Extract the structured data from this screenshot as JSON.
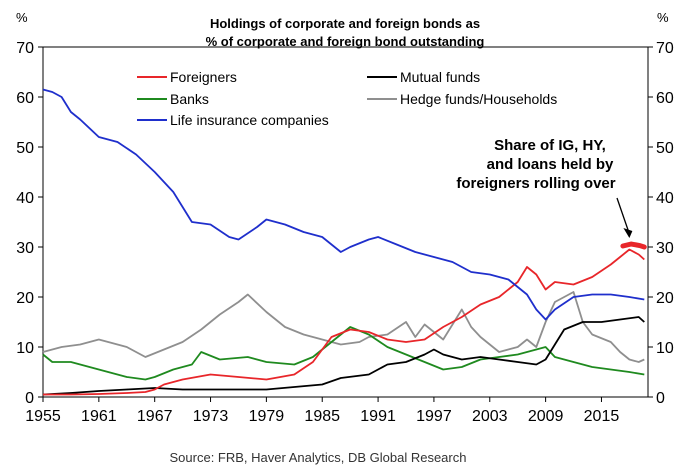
{
  "chart_data": {
    "type": "line",
    "title": "Holdings of corporate and foreign bonds as",
    "subtitle": "% of corporate and foreign bond outstanding",
    "ylabel_left": "%",
    "ylabel_right": "%",
    "xlim": [
      1955,
      2020
    ],
    "ylim": [
      0,
      70
    ],
    "x_ticks": [
      1955,
      1961,
      1967,
      1973,
      1979,
      1985,
      1991,
      1997,
      2003,
      2009,
      2015
    ],
    "y_ticks": [
      0,
      10,
      20,
      30,
      40,
      50,
      60,
      70
    ],
    "source": "Source: FRB, Haver Analytics, DB Global  Research",
    "annotation": {
      "lines": [
        "Share of IG, HY,",
        "and loans held by",
        "foreigners rolling over"
      ],
      "target": [
        2018,
        30.2
      ]
    },
    "series": [
      {
        "name": "Foreigners",
        "color": "#e8262a",
        "points": [
          [
            1955,
            0.5
          ],
          [
            1958,
            0.5
          ],
          [
            1961,
            0.6
          ],
          [
            1964,
            0.8
          ],
          [
            1966,
            1.0
          ],
          [
            1967,
            1.5
          ],
          [
            1968,
            2.5
          ],
          [
            1970,
            3.5
          ],
          [
            1973,
            4.5
          ],
          [
            1976,
            4.0
          ],
          [
            1979,
            3.5
          ],
          [
            1982,
            4.5
          ],
          [
            1984,
            7.0
          ],
          [
            1986,
            12.0
          ],
          [
            1988,
            13.5
          ],
          [
            1990,
            13.0
          ],
          [
            1992,
            11.5
          ],
          [
            1994,
            11.0
          ],
          [
            1996,
            11.5
          ],
          [
            1998,
            14.0
          ],
          [
            2000,
            16.0
          ],
          [
            2002,
            18.5
          ],
          [
            2004,
            20.0
          ],
          [
            2006,
            23.0
          ],
          [
            2007,
            26.0
          ],
          [
            2008,
            24.5
          ],
          [
            2009,
            21.5
          ],
          [
            2010,
            23.0
          ],
          [
            2012,
            22.5
          ],
          [
            2014,
            24.0
          ],
          [
            2016,
            26.5
          ],
          [
            2017,
            28.0
          ],
          [
            2018,
            29.5
          ],
          [
            2019,
            28.5
          ],
          [
            2019.6,
            27.5
          ]
        ]
      },
      {
        "name": "Banks",
        "color": "#1f8a1f",
        "points": [
          [
            1955,
            8.5
          ],
          [
            1956,
            7.0
          ],
          [
            1958,
            7.0
          ],
          [
            1961,
            5.5
          ],
          [
            1964,
            4.0
          ],
          [
            1966,
            3.5
          ],
          [
            1967,
            4.0
          ],
          [
            1969,
            5.5
          ],
          [
            1971,
            6.5
          ],
          [
            1972,
            9.0
          ],
          [
            1974,
            7.5
          ],
          [
            1977,
            8.0
          ],
          [
            1979,
            7.0
          ],
          [
            1982,
            6.5
          ],
          [
            1984,
            8.0
          ],
          [
            1986,
            11.0
          ],
          [
            1988,
            14.0
          ],
          [
            1990,
            12.5
          ],
          [
            1992,
            10.0
          ],
          [
            1994,
            8.5
          ],
          [
            1996,
            7.0
          ],
          [
            1998,
            5.5
          ],
          [
            2000,
            6.0
          ],
          [
            2002,
            7.5
          ],
          [
            2004,
            8.0
          ],
          [
            2006,
            8.5
          ],
          [
            2008,
            9.5
          ],
          [
            2009,
            10.0
          ],
          [
            2010,
            8.0
          ],
          [
            2012,
            7.0
          ],
          [
            2014,
            6.0
          ],
          [
            2016,
            5.5
          ],
          [
            2018,
            5.0
          ],
          [
            2019.6,
            4.5
          ]
        ]
      },
      {
        "name": "Life insurance companies",
        "color": "#1f2fcc",
        "points": [
          [
            1955,
            61.5
          ],
          [
            1956,
            61.0
          ],
          [
            1957,
            60.0
          ],
          [
            1958,
            57.0
          ],
          [
            1959,
            55.5
          ],
          [
            1961,
            52.0
          ],
          [
            1963,
            51.0
          ],
          [
            1965,
            48.5
          ],
          [
            1967,
            45.0
          ],
          [
            1969,
            41.0
          ],
          [
            1970,
            38.0
          ],
          [
            1971,
            35.0
          ],
          [
            1973,
            34.5
          ],
          [
            1975,
            32.0
          ],
          [
            1976,
            31.5
          ],
          [
            1978,
            34.0
          ],
          [
            1979,
            35.5
          ],
          [
            1981,
            34.5
          ],
          [
            1983,
            33.0
          ],
          [
            1985,
            32.0
          ],
          [
            1986,
            30.5
          ],
          [
            1987,
            29.0
          ],
          [
            1988,
            30.0
          ],
          [
            1990,
            31.5
          ],
          [
            1991,
            32.0
          ],
          [
            1993,
            30.5
          ],
          [
            1995,
            29.0
          ],
          [
            1997,
            28.0
          ],
          [
            1999,
            27.0
          ],
          [
            2001,
            25.0
          ],
          [
            2003,
            24.5
          ],
          [
            2005,
            23.5
          ],
          [
            2007,
            20.5
          ],
          [
            2008,
            17.5
          ],
          [
            2009,
            15.5
          ],
          [
            2010,
            17.5
          ],
          [
            2012,
            20.0
          ],
          [
            2014,
            20.5
          ],
          [
            2016,
            20.5
          ],
          [
            2018,
            20.0
          ],
          [
            2019.6,
            19.5
          ]
        ]
      },
      {
        "name": "Mutual funds",
        "color": "#000000",
        "points": [
          [
            1955,
            0.5
          ],
          [
            1958,
            0.8
          ],
          [
            1961,
            1.2
          ],
          [
            1964,
            1.5
          ],
          [
            1967,
            1.8
          ],
          [
            1970,
            1.5
          ],
          [
            1973,
            1.5
          ],
          [
            1976,
            1.5
          ],
          [
            1979,
            1.5
          ],
          [
            1982,
            2.0
          ],
          [
            1985,
            2.5
          ],
          [
            1987,
            3.8
          ],
          [
            1990,
            4.5
          ],
          [
            1992,
            6.5
          ],
          [
            1994,
            7.0
          ],
          [
            1996,
            8.5
          ],
          [
            1997,
            9.5
          ],
          [
            1998,
            8.5
          ],
          [
            2000,
            7.5
          ],
          [
            2002,
            8.0
          ],
          [
            2004,
            7.5
          ],
          [
            2006,
            7.0
          ],
          [
            2008,
            6.5
          ],
          [
            2009,
            7.5
          ],
          [
            2010,
            10.5
          ],
          [
            2011,
            13.5
          ],
          [
            2013,
            15.0
          ],
          [
            2015,
            15.0
          ],
          [
            2017,
            15.5
          ],
          [
            2019,
            16.0
          ],
          [
            2019.6,
            15.0
          ]
        ]
      },
      {
        "name": "Hedge funds/Households",
        "color": "#8f8f8f",
        "points": [
          [
            1955,
            9.0
          ],
          [
            1957,
            10.0
          ],
          [
            1959,
            10.5
          ],
          [
            1961,
            11.5
          ],
          [
            1962,
            11.0
          ],
          [
            1964,
            10.0
          ],
          [
            1966,
            8.0
          ],
          [
            1968,
            9.5
          ],
          [
            1970,
            11.0
          ],
          [
            1972,
            13.5
          ],
          [
            1974,
            16.5
          ],
          [
            1976,
            19.0
          ],
          [
            1977,
            20.5
          ],
          [
            1979,
            17.0
          ],
          [
            1981,
            14.0
          ],
          [
            1983,
            12.5
          ],
          [
            1985,
            11.5
          ],
          [
            1987,
            10.5
          ],
          [
            1989,
            11.0
          ],
          [
            1990,
            12.0
          ],
          [
            1992,
            12.5
          ],
          [
            1994,
            15.0
          ],
          [
            1995,
            12.0
          ],
          [
            1996,
            14.5
          ],
          [
            1998,
            11.5
          ],
          [
            2000,
            17.5
          ],
          [
            2001,
            14.0
          ],
          [
            2002,
            12.0
          ],
          [
            2004,
            9.0
          ],
          [
            2006,
            10.0
          ],
          [
            2007,
            11.5
          ],
          [
            2008,
            10.0
          ],
          [
            2009,
            15.0
          ],
          [
            2010,
            19.0
          ],
          [
            2011,
            20.0
          ],
          [
            2012,
            21.0
          ],
          [
            2013,
            15.0
          ],
          [
            2014,
            12.5
          ],
          [
            2016,
            11.0
          ],
          [
            2017,
            9.0
          ],
          [
            2018,
            7.5
          ],
          [
            2019,
            7.0
          ],
          [
            2019.6,
            7.5
          ]
        ]
      }
    ],
    "highlight": {
      "color": "#e8262a",
      "points": [
        [
          2017.3,
          30.2
        ],
        [
          2018.2,
          30.6
        ],
        [
          2019.1,
          30.3
        ],
        [
          2019.6,
          30.0
        ]
      ]
    }
  }
}
